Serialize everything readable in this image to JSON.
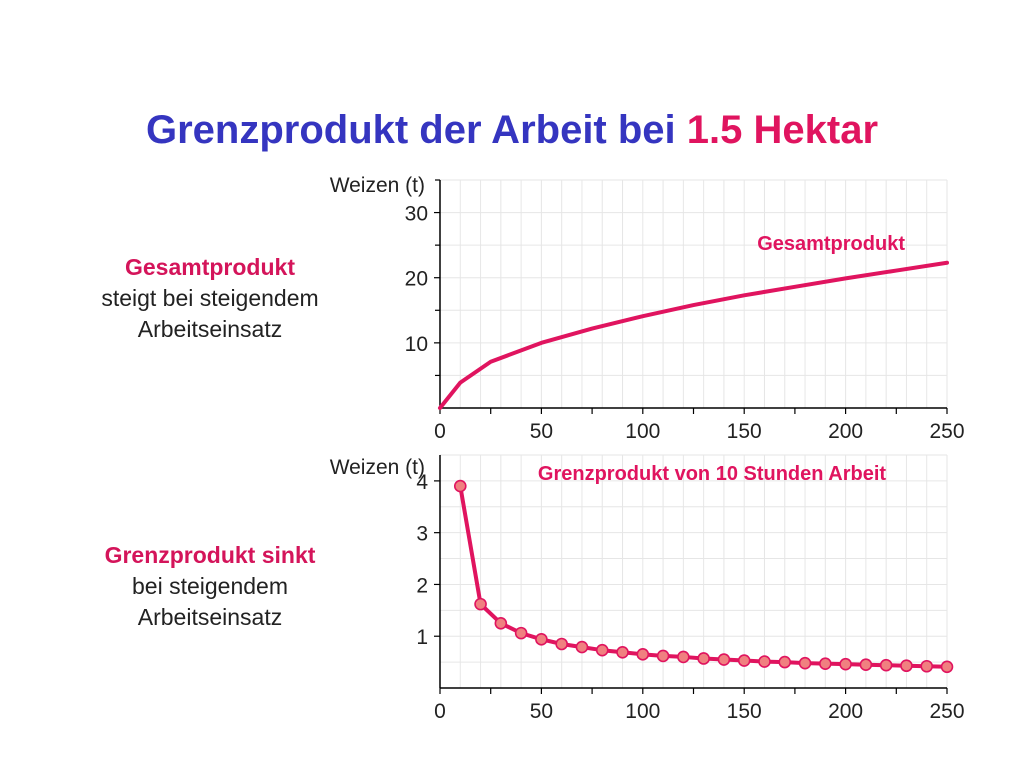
{
  "title": {
    "part1": "Grenzprodukt der Arbeit bei ",
    "part2": "1.5 Hektar"
  },
  "colors": {
    "title": "#3535c0",
    "accent": "#e0145f",
    "marker_fill": "#f08080",
    "text": "#222222",
    "grid": "#e6e6e6"
  },
  "side_top": {
    "heading": "Gesamtprodukt",
    "line1": "steigt bei steigendem",
    "line2": "Arbeitseinsatz"
  },
  "side_bottom": {
    "heading": "Grenzprodukt sinkt",
    "line1": "bei steigendem",
    "line2": "Arbeitseinsatz"
  },
  "chart_data": [
    {
      "type": "line",
      "ylabel": "Weizen (t)",
      "xlim": [
        0,
        250
      ],
      "ylim": [
        0,
        35
      ],
      "xticks": [
        0,
        50,
        100,
        150,
        200,
        250
      ],
      "yticks": [
        10,
        20,
        30
      ],
      "annotation": "Gesamtprodukt",
      "grid": true,
      "series": [
        {
          "name": "Gesamtprodukt",
          "x": [
            0,
            10,
            25,
            50,
            75,
            100,
            125,
            150,
            175,
            200,
            225,
            250
          ],
          "y": [
            0,
            3.9,
            7.1,
            10.0,
            12.2,
            14.1,
            15.8,
            17.3,
            18.6,
            19.9,
            21.1,
            22.3
          ]
        }
      ]
    },
    {
      "type": "line",
      "ylabel": "Weizen (t)",
      "xlim": [
        0,
        250
      ],
      "ylim": [
        0,
        4.5
      ],
      "xticks": [
        0,
        50,
        100,
        150,
        200,
        250
      ],
      "yticks": [
        1,
        2,
        3,
        4
      ],
      "annotation": "Grenzprodukt von 10 Stunden Arbeit",
      "grid": true,
      "series": [
        {
          "name": "Grenzprodukt von 10 Stunden Arbeit",
          "x": [
            10,
            20,
            30,
            40,
            50,
            60,
            70,
            80,
            90,
            100,
            110,
            120,
            130,
            140,
            150,
            160,
            170,
            180,
            190,
            200,
            210,
            220,
            230,
            240,
            250
          ],
          "y": [
            3.9,
            1.62,
            1.25,
            1.06,
            0.94,
            0.85,
            0.79,
            0.73,
            0.69,
            0.65,
            0.62,
            0.6,
            0.57,
            0.55,
            0.53,
            0.51,
            0.5,
            0.48,
            0.47,
            0.46,
            0.45,
            0.44,
            0.43,
            0.42,
            0.41
          ]
        }
      ]
    }
  ]
}
